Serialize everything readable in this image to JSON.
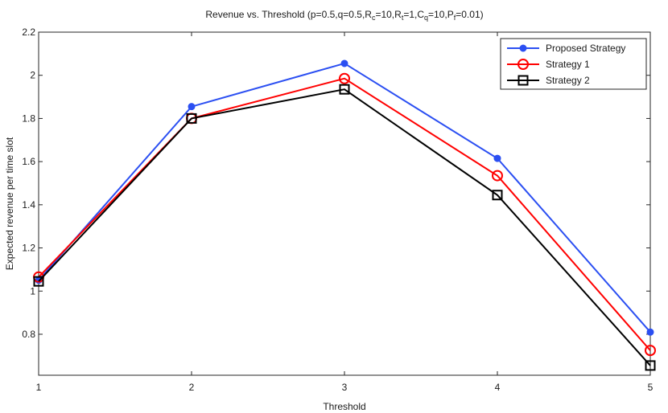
{
  "chart_data": {
    "type": "line",
    "title": "Revenue vs. Threshold",
    "title_params": "(p=0.5,q=0.5,R",
    "title_parts": [
      {
        "text": "(p=0.5,q=0.5,R",
        "sub": false
      },
      {
        "text": "c",
        "sub": true
      },
      {
        "text": "=10,R",
        "sub": false
      },
      {
        "text": "t",
        "sub": true
      },
      {
        "text": "=1,C",
        "sub": false
      },
      {
        "text": "q",
        "sub": true
      },
      {
        "text": "=10,P",
        "sub": false
      },
      {
        "text": "f",
        "sub": true
      },
      {
        "text": "=0.01)",
        "sub": false
      }
    ],
    "xlabel": "Threshold",
    "ylabel": "Expected revenue per time slot",
    "x": [
      1,
      2,
      3,
      4,
      5
    ],
    "xlim": [
      1,
      5
    ],
    "ylim": [
      0.61,
      2.2
    ],
    "xticks": [
      "1",
      "2",
      "3",
      "4",
      "5"
    ],
    "yticks": [
      {
        "value": 0.8,
        "label": "0.8"
      },
      {
        "value": 1.0,
        "label": "1"
      },
      {
        "value": 1.2,
        "label": "1.2"
      },
      {
        "value": 1.4,
        "label": "1.4"
      },
      {
        "value": 1.6,
        "label": "1.6"
      },
      {
        "value": 1.8,
        "label": "1.8"
      },
      {
        "value": 2.0,
        "label": "2"
      },
      {
        "value": 2.2,
        "label": "2.2"
      }
    ],
    "grid": false,
    "legend_position": "top-right",
    "series": [
      {
        "name": "Proposed Strategy",
        "values": [
          1.05,
          1.855,
          2.055,
          1.615,
          0.81
        ],
        "color": "#2b4ff2",
        "marker": "filled-circle"
      },
      {
        "name": "Strategy 1",
        "values": [
          1.065,
          1.8,
          1.985,
          1.535,
          0.725
        ],
        "color": "#ff0000",
        "marker": "open-circle"
      },
      {
        "name": "Strategy 2",
        "values": [
          1.045,
          1.8,
          1.935,
          1.445,
          0.655
        ],
        "color": "#000000",
        "marker": "open-square"
      }
    ]
  }
}
